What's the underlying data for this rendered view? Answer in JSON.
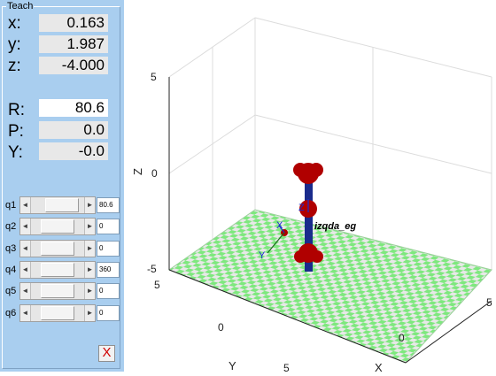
{
  "panel": {
    "title": "Teach",
    "position": [
      {
        "label": "x:",
        "value": "0.163"
      },
      {
        "label": "y:",
        "value": "1.987"
      },
      {
        "label": "z:",
        "value": "-4.000"
      }
    ],
    "orientation": [
      {
        "label": "R:",
        "value": "80.6"
      },
      {
        "label": "P:",
        "value": "0.0"
      },
      {
        "label": "Y:",
        "value": "-0.0"
      }
    ],
    "joints": [
      {
        "label": "q1",
        "value": "80.6",
        "level": 0.72
      },
      {
        "label": "q2",
        "value": "0",
        "level": 0.5
      },
      {
        "label": "q3",
        "value": "0",
        "level": 0.5
      },
      {
        "label": "q4",
        "value": "360",
        "level": 0.5
      },
      {
        "label": "q5",
        "value": "0",
        "level": 0.5
      },
      {
        "label": "q6",
        "value": "0",
        "level": 0.5
      }
    ],
    "close_glyph": "X",
    "arrow_left": "◄",
    "arrow_right": "►"
  },
  "plot": {
    "robot_name": "izqda_eg",
    "z_label": "Z",
    "x_label": "X",
    "y_label": "Y",
    "z_ticks": [
      "5",
      "0",
      "-5"
    ],
    "x_ticks": [
      "5",
      "0"
    ],
    "y_ticks": [
      "5",
      "0",
      "5"
    ],
    "frame_x_label": "X",
    "frame_y_label": "Y",
    "frame_z_label": "Z",
    "checker_green": "#7ee87e",
    "checker_white": "#e8e8e8",
    "link_color": "#1a2b8c",
    "joint_color": "#b00000"
  }
}
